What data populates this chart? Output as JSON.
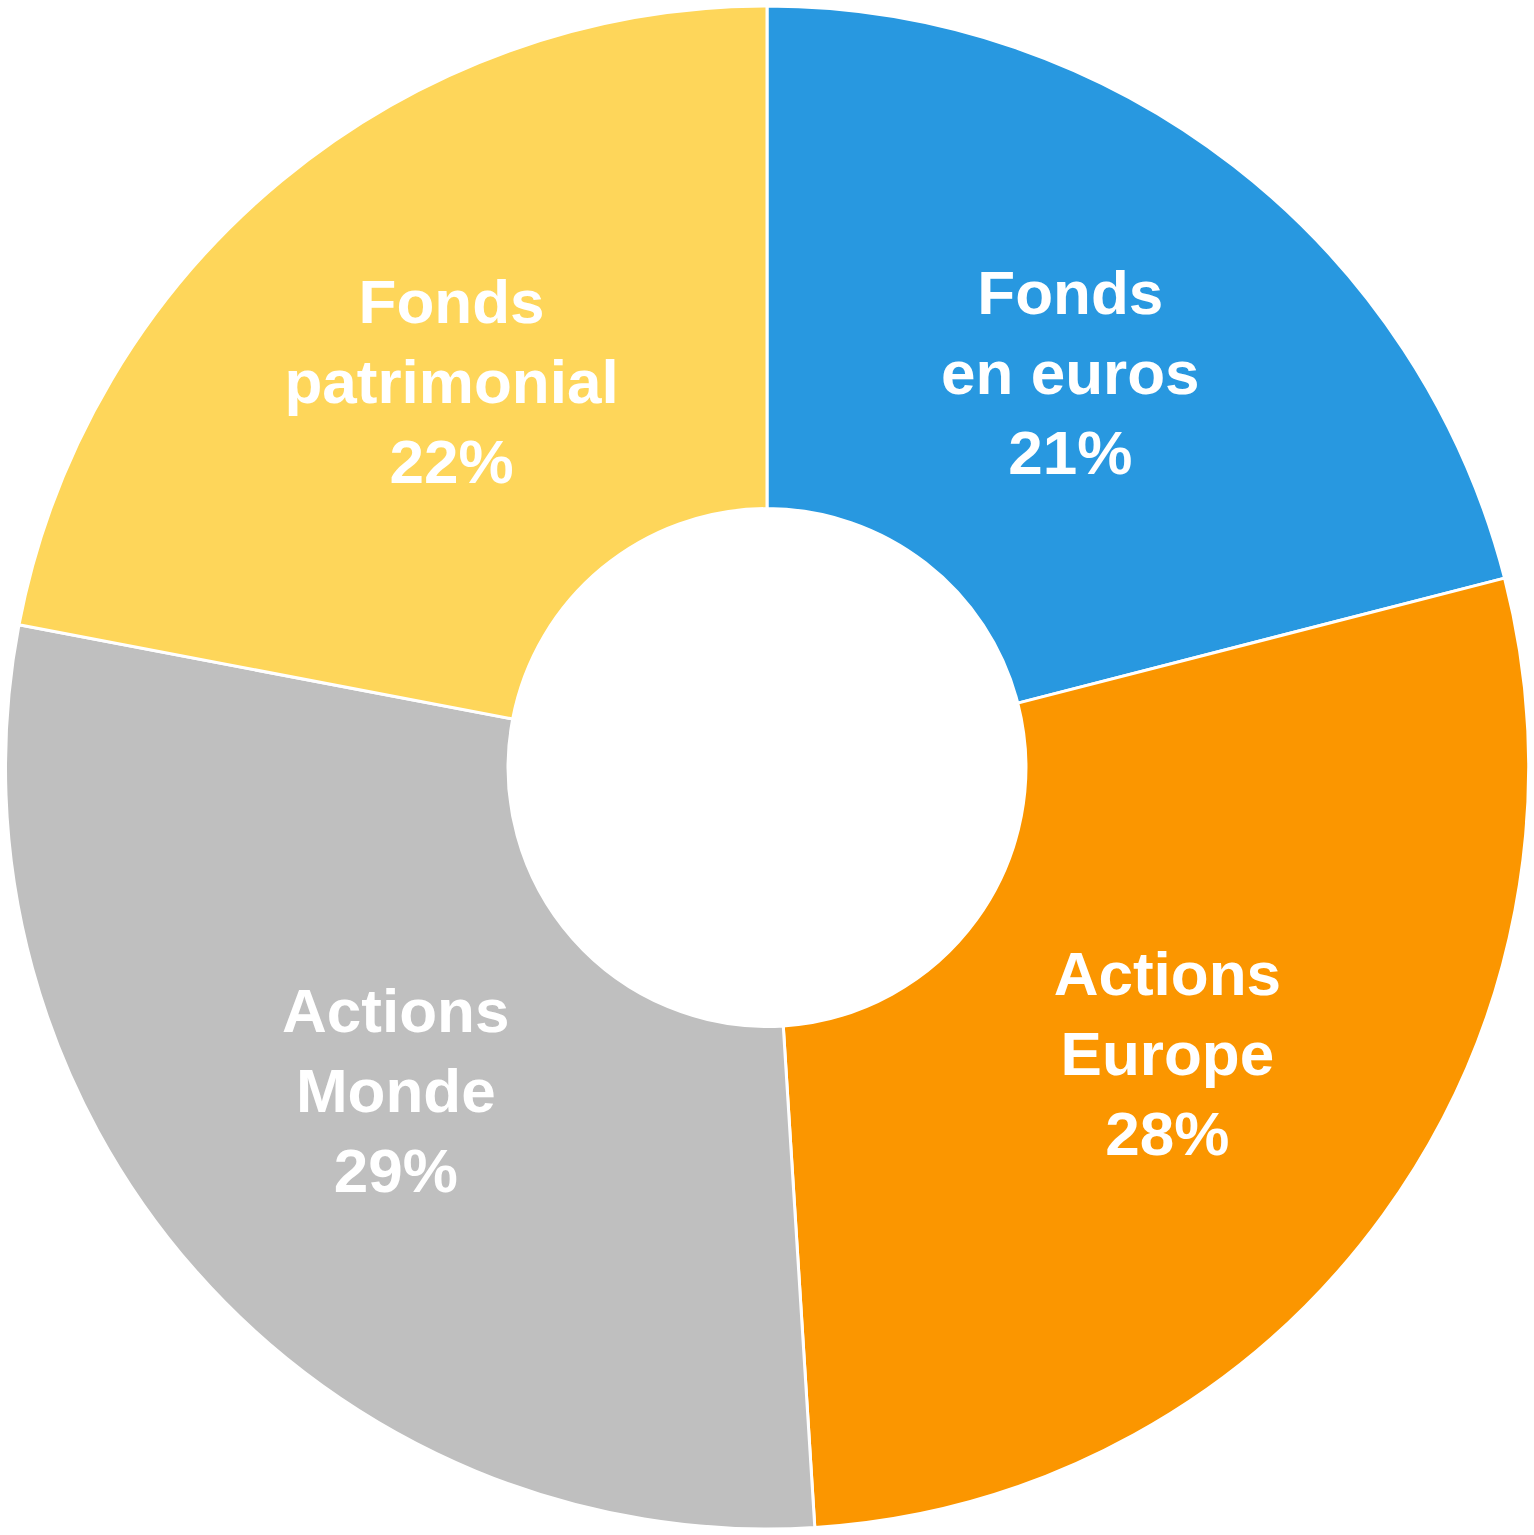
{
  "chart_data": {
    "type": "donut",
    "categories": [
      "Fonds en euros",
      "Actions Europe",
      "Actions Monde",
      "Fonds patrimonial"
    ],
    "values": [
      21,
      28,
      29,
      22
    ],
    "colors": [
      "#2898e0",
      "#fb9600",
      "#bfbfbf",
      "#fed65a"
    ],
    "value_labels": [
      "21%",
      "28%",
      "29%",
      "22%"
    ],
    "legend": false
  }
}
